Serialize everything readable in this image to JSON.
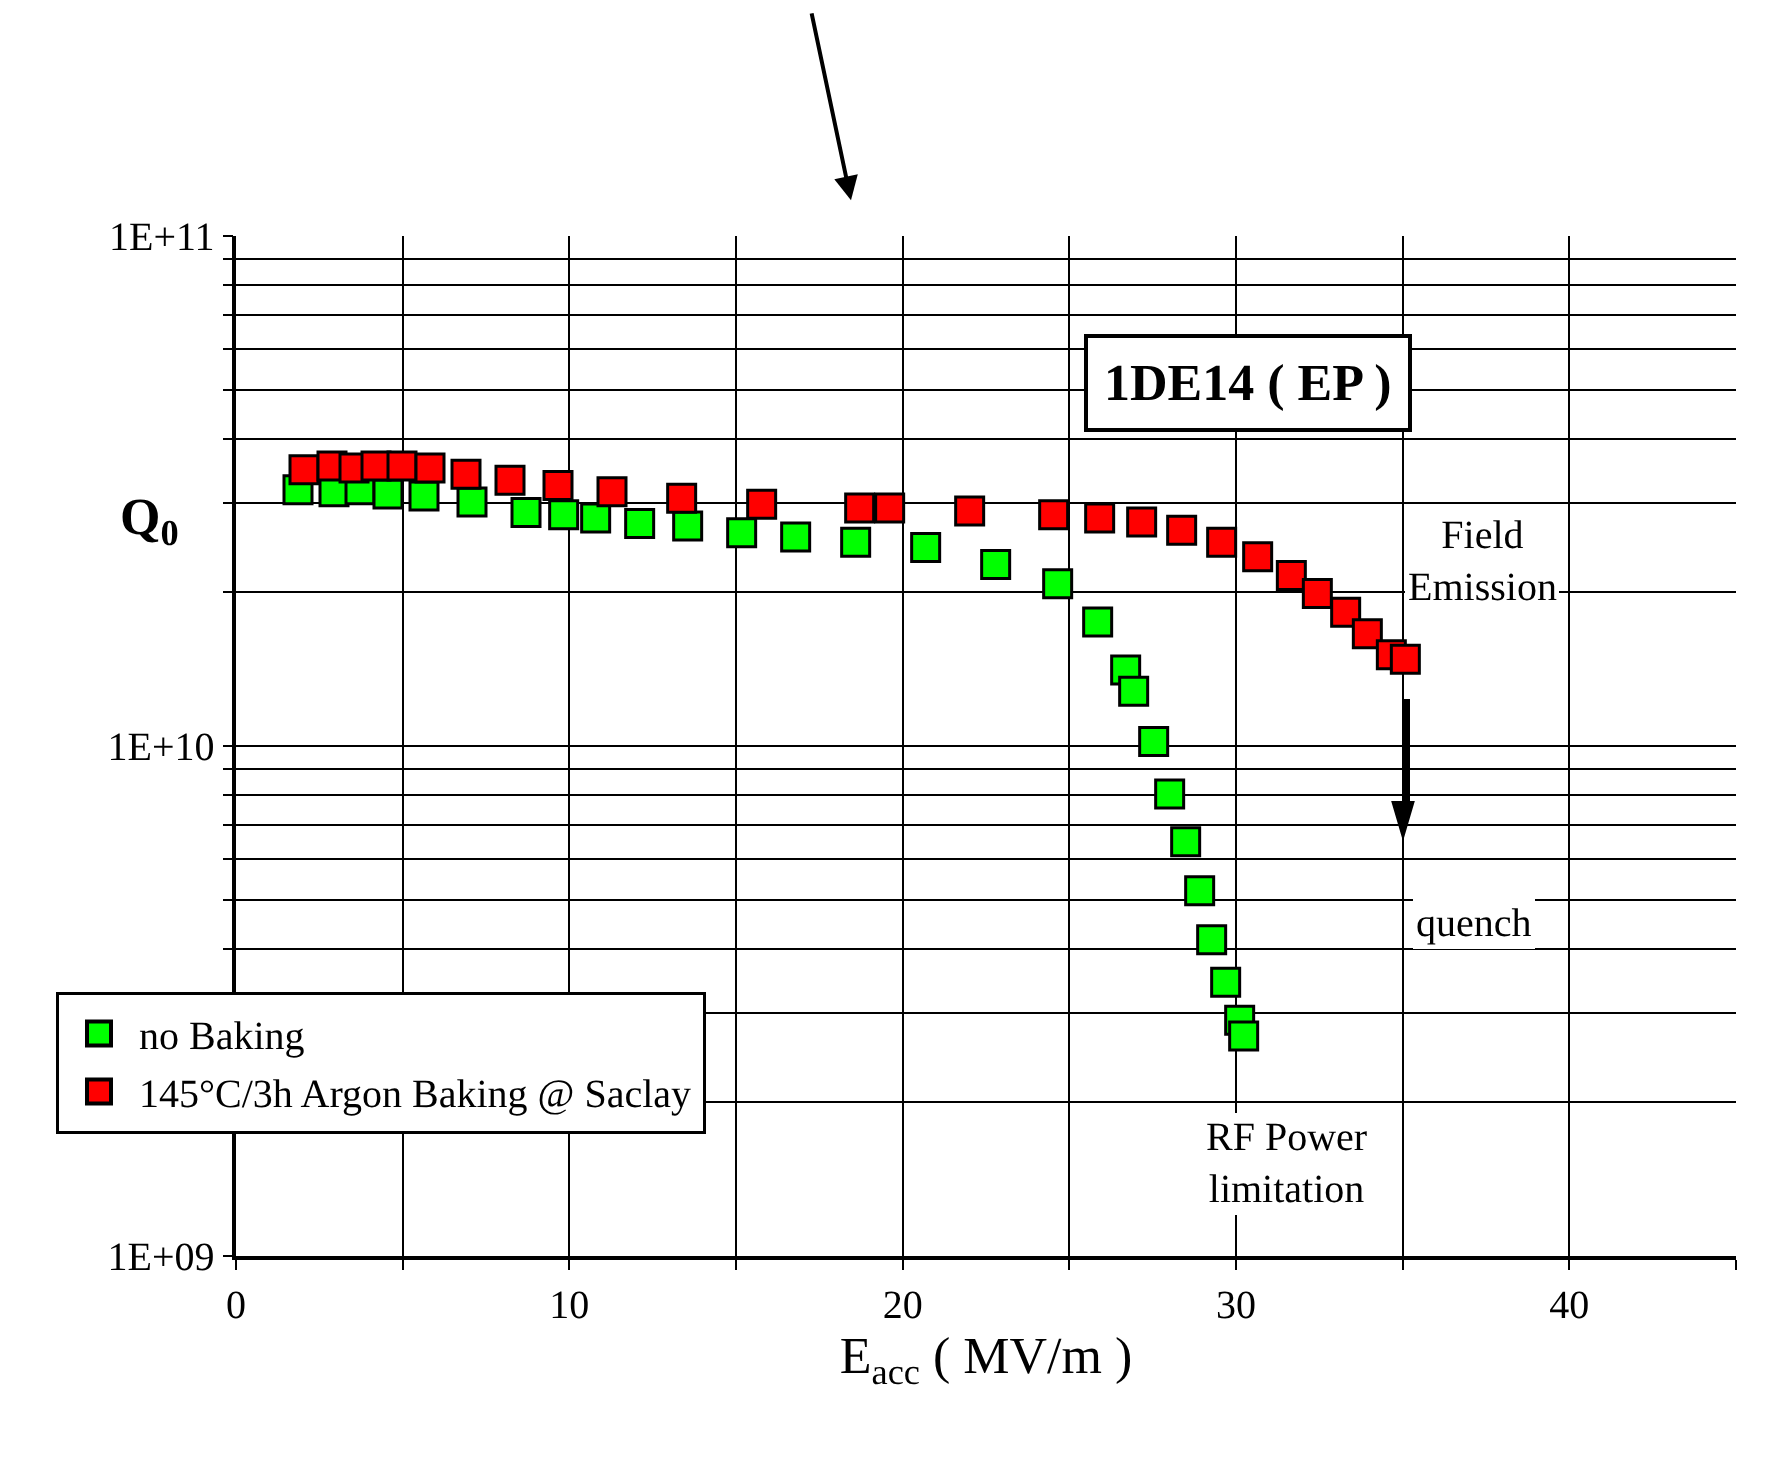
{
  "chart_data": {
    "type": "scatter",
    "title": "1DE14 ( EP )",
    "xlabel": "E$_{acc}$ ( MV/m )",
    "ylabel": "Q$_{0}$",
    "annotations": [
      "Field Emission",
      "quench",
      "RF Power limitation"
    ],
    "log": "y",
    "grid": true,
    "legend": "bottom left",
    "marker": "square",
    "xlim": [
      0,
      45
    ],
    "ylim": [
      1000000000.0,
      100000000000.0
    ],
    "xticks": [
      0,
      {
        "value": 5,
        "label": null
      },
      10,
      {
        "value": 15,
        "label": null
      },
      20,
      {
        "value": 25,
        "label": null
      },
      30,
      {
        "value": 35,
        "label": null
      },
      40,
      {
        "value": 45,
        "label": null
      }
    ],
    "yticks": [
      {
        "value": 1000000000.0,
        "label": "1E+09"
      },
      {
        "value": 2000000000.0,
        "label": null
      },
      {
        "value": 3000000000.0,
        "label": null
      },
      {
        "value": 4000000000.0,
        "label": null
      },
      {
        "value": 5000000000.0,
        "label": null
      },
      {
        "value": 6000000000.0,
        "label": null
      },
      {
        "value": 7000000000.0,
        "label": null
      },
      {
        "value": 8000000000.0,
        "label": null
      },
      {
        "value": 9000000000.0,
        "label": null
      },
      {
        "value": 10000000000.0,
        "label": "1E+10"
      },
      {
        "value": 20000000000.0,
        "label": null
      },
      {
        "value": 30000000000.0,
        "label": null
      },
      {
        "value": 40000000000.0,
        "label": null
      },
      {
        "value": 50000000000.0,
        "label": null
      },
      {
        "value": 60000000000.0,
        "label": null
      },
      {
        "value": 70000000000.0,
        "label": null
      },
      {
        "value": 80000000000.0,
        "label": null
      },
      {
        "value": 90000000000.0,
        "label": null
      },
      {
        "value": 100000000000.0,
        "label": "1E+11"
      }
    ],
    "series": [
      {
        "name": "no Baking",
        "color": "#00ff00",
        "x": [
          1.86,
          2.94,
          3.72,
          4.56,
          5.64,
          7.08,
          8.7,
          9.83,
          10.79,
          12.11,
          13.55,
          15.17,
          16.79,
          18.59,
          20.69,
          22.79,
          24.65,
          25.85,
          26.69,
          26.93,
          27.53,
          28.01,
          28.49,
          28.91,
          29.27,
          29.69,
          30.11,
          30.23
        ],
        "values": [
          31800000000.0,
          31500000000.0,
          31800000000.0,
          31200000000.0,
          30900000000.0,
          30100000000.0,
          28700000000.0,
          28400000000.0,
          28000000000.0,
          27300000000.0,
          27000000000.0,
          26200000000.0,
          25700000000.0,
          25100000000.0,
          24500000000.0,
          22700000000.0,
          20800000000.0,
          17500000000.0,
          14100000000.0,
          12800000000.0,
          10200000000.0,
          8050000000.0,
          6490000000.0,
          5200000000.0,
          4170000000.0,
          3440000000.0,
          2900000000.0,
          2700000000.0
        ]
      },
      {
        "name": "145°C/3h Argon Baking @ Saclay",
        "color": "#ff0000",
        "x": [
          2.04,
          2.88,
          3.54,
          4.2,
          4.98,
          5.82,
          6.9,
          8.22,
          9.66,
          11.28,
          13.37,
          15.77,
          18.71,
          19.61,
          22.01,
          24.53,
          25.91,
          27.17,
          28.37,
          29.57,
          30.65,
          31.66,
          32.44,
          33.29,
          33.94,
          34.66,
          35.08
        ],
        "values": [
          34800000000.0,
          35400000000.0,
          35100000000.0,
          35400000000.0,
          35400000000.0,
          35100000000.0,
          34100000000.0,
          33200000000.0,
          32400000000.0,
          31500000000.0,
          30600000000.0,
          29800000000.0,
          29300000000.0,
          29300000000.0,
          28900000000.0,
          28400000000.0,
          28000000000.0,
          27500000000.0,
          26500000000.0,
          25100000000.0,
          23500000000.0,
          21600000000.0,
          19900000000.0,
          18300000000.0,
          16600000000.0,
          15100000000.0,
          14800000000.0
        ]
      }
    ]
  }
}
